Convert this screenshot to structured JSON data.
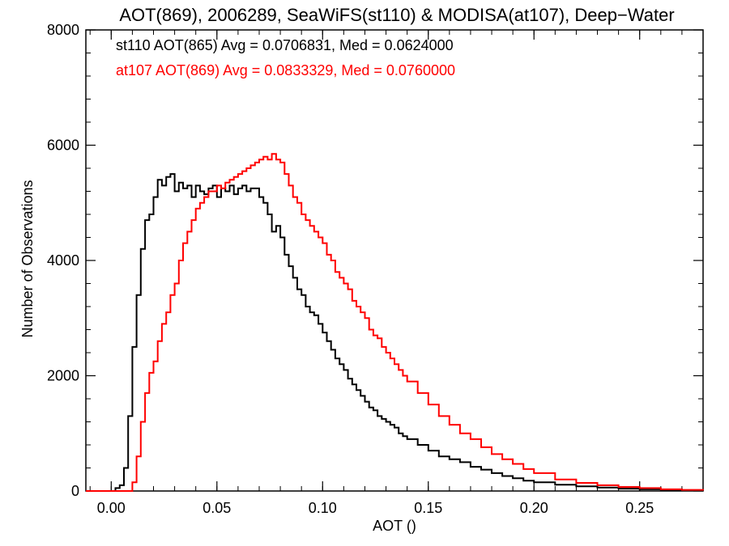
{
  "chart_data": {
    "type": "line",
    "title": "AOT(869), 2006289, SeaWiFS(st110) & MODISA(at107), Deep−Water",
    "xlabel": "AOT ()",
    "ylabel": "Number of Observations",
    "xlim": [
      -0.012,
      0.28
    ],
    "ylim": [
      0,
      8000
    ],
    "grid": false,
    "legend_placement": "top-left",
    "x_ticks": [
      0.0,
      0.05,
      0.1,
      0.15,
      0.2,
      0.25
    ],
    "x_tick_labels": [
      "0.00",
      "0.05",
      "0.10",
      "0.15",
      "0.20",
      "0.25"
    ],
    "y_ticks": [
      0,
      2000,
      4000,
      6000,
      8000
    ],
    "y_tick_labels": [
      "0",
      "2000",
      "4000",
      "6000",
      "8000"
    ],
    "series": [
      {
        "name": "st110 AOT(865) Avg = 0.0706831, Med = 0.0624000",
        "color": "#000000",
        "x": [
          -0.012,
          0.0,
          0.002,
          0.004,
          0.006,
          0.008,
          0.01,
          0.012,
          0.014,
          0.016,
          0.018,
          0.02,
          0.022,
          0.024,
          0.026,
          0.028,
          0.03,
          0.032,
          0.034,
          0.036,
          0.038,
          0.04,
          0.042,
          0.044,
          0.046,
          0.048,
          0.05,
          0.052,
          0.054,
          0.056,
          0.058,
          0.06,
          0.062,
          0.064,
          0.066,
          0.068,
          0.07,
          0.072,
          0.074,
          0.076,
          0.078,
          0.08,
          0.082,
          0.084,
          0.086,
          0.088,
          0.09,
          0.092,
          0.094,
          0.096,
          0.098,
          0.1,
          0.102,
          0.104,
          0.106,
          0.108,
          0.11,
          0.112,
          0.114,
          0.116,
          0.118,
          0.12,
          0.122,
          0.124,
          0.126,
          0.128,
          0.13,
          0.132,
          0.134,
          0.136,
          0.138,
          0.14,
          0.145,
          0.15,
          0.155,
          0.16,
          0.165,
          0.17,
          0.175,
          0.18,
          0.185,
          0.19,
          0.195,
          0.2,
          0.21,
          0.22,
          0.23,
          0.24,
          0.25,
          0.26,
          0.27,
          0.28
        ],
        "y": [
          0,
          0,
          50,
          100,
          400,
          1300,
          2500,
          3400,
          4200,
          4700,
          4800,
          5100,
          5400,
          5300,
          5450,
          5500,
          5200,
          5350,
          5250,
          5300,
          5100,
          5300,
          5200,
          5150,
          5250,
          5300,
          5100,
          5250,
          5200,
          5300,
          5150,
          5250,
          5300,
          5200,
          5250,
          5250,
          5100,
          5000,
          4800,
          4500,
          4600,
          4400,
          4100,
          3900,
          3700,
          3500,
          3400,
          3200,
          3100,
          3050,
          2900,
          2750,
          2600,
          2450,
          2300,
          2200,
          2100,
          1950,
          1850,
          1750,
          1650,
          1550,
          1450,
          1400,
          1300,
          1250,
          1200,
          1150,
          1100,
          1000,
          950,
          900,
          800,
          700,
          600,
          550,
          500,
          420,
          370,
          310,
          260,
          220,
          180,
          150,
          110,
          80,
          60,
          40,
          30,
          20,
          10,
          5
        ]
      },
      {
        "name": "at107 AOT(869) Avg = 0.0833329, Med = 0.0760000",
        "color": "#ff0000",
        "x": [
          -0.012,
          0.0,
          0.004,
          0.008,
          0.01,
          0.012,
          0.014,
          0.016,
          0.018,
          0.02,
          0.022,
          0.024,
          0.026,
          0.028,
          0.03,
          0.032,
          0.034,
          0.036,
          0.038,
          0.04,
          0.042,
          0.044,
          0.046,
          0.048,
          0.05,
          0.052,
          0.054,
          0.056,
          0.058,
          0.06,
          0.062,
          0.064,
          0.066,
          0.068,
          0.07,
          0.072,
          0.074,
          0.076,
          0.078,
          0.08,
          0.082,
          0.084,
          0.086,
          0.088,
          0.09,
          0.092,
          0.094,
          0.096,
          0.098,
          0.1,
          0.102,
          0.104,
          0.106,
          0.108,
          0.11,
          0.112,
          0.114,
          0.116,
          0.118,
          0.12,
          0.122,
          0.124,
          0.126,
          0.128,
          0.13,
          0.132,
          0.134,
          0.136,
          0.138,
          0.14,
          0.145,
          0.15,
          0.155,
          0.16,
          0.165,
          0.17,
          0.175,
          0.18,
          0.185,
          0.19,
          0.195,
          0.2,
          0.21,
          0.22,
          0.23,
          0.24,
          0.25,
          0.26,
          0.27,
          0.28
        ],
        "y": [
          0,
          0,
          0,
          0,
          150,
          600,
          1200,
          1700,
          2050,
          2250,
          2600,
          2900,
          3100,
          3400,
          3600,
          4000,
          4300,
          4500,
          4700,
          4900,
          5000,
          5100,
          5200,
          5200,
          5300,
          5250,
          5350,
          5400,
          5450,
          5500,
          5550,
          5600,
          5650,
          5700,
          5750,
          5800,
          5750,
          5850,
          5750,
          5700,
          5500,
          5300,
          5100,
          5000,
          4800,
          4700,
          4600,
          4500,
          4400,
          4300,
          4100,
          4000,
          3800,
          3700,
          3600,
          3500,
          3300,
          3200,
          3100,
          3000,
          2800,
          2700,
          2650,
          2500,
          2400,
          2300,
          2200,
          2100,
          2000,
          1900,
          1700,
          1500,
          1300,
          1150,
          1000,
          900,
          760,
          640,
          550,
          470,
          380,
          310,
          200,
          140,
          100,
          70,
          50,
          30,
          20,
          10
        ]
      }
    ]
  }
}
